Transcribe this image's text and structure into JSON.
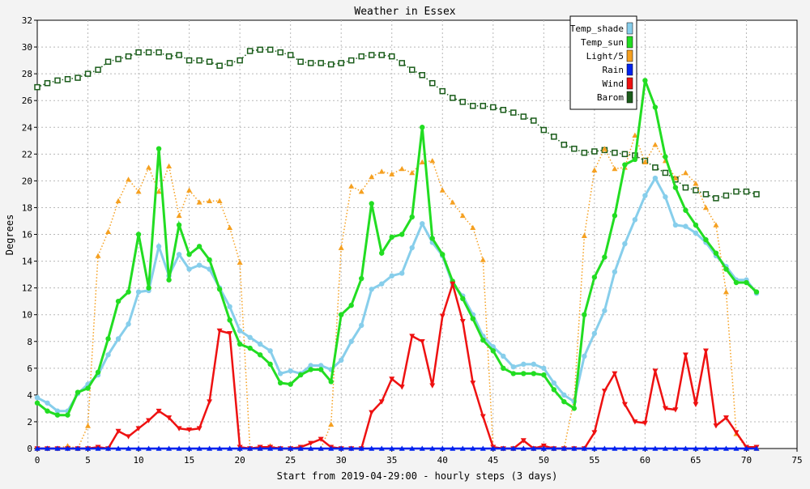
{
  "chart_data": {
    "type": "line",
    "title": "Weather in Essex",
    "xlabel": "Start from 2019-04-29:00 - hourly steps (3 days)",
    "ylabel": "Degrees",
    "xlim": [
      0,
      75
    ],
    "ylim": [
      0,
      32
    ],
    "xticks": [
      0,
      5,
      10,
      15,
      20,
      25,
      30,
      35,
      40,
      45,
      50,
      55,
      60,
      65,
      70,
      75
    ],
    "yticks": [
      0,
      2,
      4,
      6,
      8,
      10,
      12,
      14,
      16,
      18,
      20,
      22,
      24,
      26,
      28,
      30,
      32
    ],
    "grid": true,
    "legend_position": "top-right",
    "x": [
      0,
      1,
      2,
      3,
      4,
      5,
      6,
      7,
      8,
      9,
      10,
      11,
      12,
      13,
      14,
      15,
      16,
      17,
      18,
      19,
      20,
      21,
      22,
      23,
      24,
      25,
      26,
      27,
      28,
      29,
      30,
      31,
      32,
      33,
      34,
      35,
      36,
      37,
      38,
      39,
      40,
      41,
      42,
      43,
      44,
      45,
      46,
      47,
      48,
      49,
      50,
      51,
      52,
      53,
      54,
      55,
      56,
      57,
      58,
      59,
      60,
      61,
      62,
      63,
      64,
      65,
      66,
      67,
      68,
      69,
      70,
      71
    ],
    "series": [
      {
        "name": "Temp_shade",
        "color": "#87ceeb",
        "marker": "dot",
        "style": "solid",
        "values": [
          3.8,
          3.4,
          2.8,
          2.8,
          4.1,
          4.8,
          5.5,
          7.0,
          8.2,
          9.3,
          11.7,
          11.8,
          15.1,
          12.9,
          14.5,
          13.4,
          13.7,
          13.4,
          12.0,
          10.6,
          8.8,
          8.3,
          7.8,
          7.3,
          5.6,
          5.8,
          5.6,
          6.2,
          6.2,
          5.9,
          6.6,
          8.0,
          9.2,
          11.9,
          12.3,
          12.9,
          13.1,
          15.0,
          16.8,
          15.4,
          14.4,
          12.3,
          11.4,
          10.0,
          8.4,
          7.6,
          6.9,
          6.1,
          6.3,
          6.3,
          6.0,
          4.9,
          4.0,
          3.5,
          6.9,
          8.6,
          10.3,
          13.2,
          15.3,
          17.1,
          18.9,
          20.2,
          18.8,
          16.7,
          16.6,
          16.1,
          15.4,
          14.4,
          13.6,
          12.6,
          12.6,
          11.6
        ]
      },
      {
        "name": "Temp_sun",
        "color": "#22dd22",
        "marker": "dot",
        "style": "solid",
        "values": [
          3.4,
          2.8,
          2.5,
          2.5,
          4.2,
          4.5,
          5.7,
          8.2,
          11.0,
          11.7,
          16.0,
          12.0,
          22.4,
          12.6,
          16.7,
          14.5,
          15.1,
          14.1,
          11.9,
          9.6,
          7.8,
          7.5,
          7.0,
          6.3,
          4.9,
          4.8,
          5.5,
          5.9,
          5.9,
          5.0,
          10.0,
          10.7,
          12.7,
          18.3,
          14.6,
          15.8,
          16.0,
          17.3,
          24.0,
          15.7,
          14.5,
          12.5,
          11.2,
          9.7,
          8.1,
          7.3,
          6.0,
          5.6,
          5.6,
          5.6,
          5.5,
          4.4,
          3.5,
          3.0,
          10.0,
          12.8,
          14.3,
          17.4,
          21.2,
          21.6,
          27.5,
          25.5,
          21.8,
          19.5,
          17.8,
          16.7,
          15.6,
          14.6,
          13.4,
          12.4,
          12.4,
          11.7
        ]
      },
      {
        "name": "Light/5",
        "color": "#f5a020",
        "marker": "triangle-up",
        "style": "dotted",
        "values": [
          0,
          0,
          0,
          0.2,
          0,
          1.7,
          14.4,
          16.2,
          18.5,
          20.1,
          19.2,
          21.0,
          19.2,
          21.1,
          17.4,
          19.3,
          18.4,
          18.5,
          18.5,
          16.5,
          13.9,
          0,
          0,
          0.2,
          0,
          0,
          0,
          0,
          0,
          1.8,
          15.0,
          19.6,
          19.2,
          20.3,
          20.7,
          20.5,
          20.9,
          20.6,
          21.4,
          21.5,
          19.3,
          18.4,
          17.4,
          16.5,
          14.1,
          0,
          0,
          0,
          0,
          0,
          0,
          0,
          0,
          3.7,
          15.9,
          20.8,
          22.4,
          20.9,
          21.0,
          23.4,
          21.4,
          22.7,
          21.5,
          20.2,
          20.6,
          19.8,
          18.0,
          16.7,
          11.7,
          1.1,
          0,
          0
        ]
      },
      {
        "name": "Rain",
        "color": "#0022ee",
        "marker": "triangle-up",
        "style": "solid",
        "values": [
          0,
          0,
          0,
          0,
          0,
          0,
          0,
          0,
          0,
          0,
          0,
          0,
          0,
          0,
          0,
          0,
          0,
          0,
          0,
          0,
          0,
          0,
          0,
          0,
          0,
          0,
          0,
          0,
          0,
          0,
          0,
          0,
          0,
          0,
          0,
          0,
          0,
          0,
          0,
          0,
          0,
          0,
          0,
          0,
          0,
          0,
          0,
          0,
          0,
          0,
          0,
          0,
          0,
          0,
          0,
          0,
          0,
          0,
          0,
          0,
          0,
          0,
          0,
          0,
          0,
          0,
          0,
          0,
          0,
          0,
          0,
          0
        ]
      },
      {
        "name": "Wind",
        "color": "#ee1111",
        "marker": "triangle-down",
        "style": "solid",
        "values": [
          0,
          0,
          0,
          0,
          0,
          0,
          0.1,
          0,
          1.3,
          0.9,
          1.5,
          2.1,
          2.8,
          2.3,
          1.5,
          1.4,
          1.5,
          3.5,
          8.8,
          8.6,
          0.1,
          0,
          0.1,
          0.1,
          0,
          0,
          0.1,
          0.4,
          0.7,
          0.1,
          0,
          0,
          0,
          2.7,
          3.5,
          5.2,
          4.6,
          8.4,
          8.0,
          4.7,
          9.9,
          12.3,
          9.5,
          4.9,
          2.4,
          0.1,
          0,
          0,
          0.6,
          0,
          0.2,
          0,
          0,
          0,
          0,
          1.2,
          4.3,
          5.6,
          3.3,
          2.0,
          1.9,
          5.8,
          3.0,
          2.9,
          7.0,
          3.3,
          7.3,
          1.7,
          2.3,
          1.2,
          0.1,
          0.1
        ]
      },
      {
        "name": "Barom",
        "color": "#1a5c1a",
        "marker": "square-open",
        "style": "dotted",
        "values": [
          27.0,
          27.3,
          27.5,
          27.6,
          27.7,
          28.0,
          28.3,
          28.9,
          29.1,
          29.3,
          29.6,
          29.6,
          29.6,
          29.3,
          29.4,
          29.0,
          29.0,
          28.9,
          28.6,
          28.8,
          29.0,
          29.7,
          29.8,
          29.8,
          29.6,
          29.4,
          28.9,
          28.8,
          28.8,
          28.7,
          28.8,
          29.0,
          29.3,
          29.4,
          29.4,
          29.3,
          28.8,
          28.3,
          27.9,
          27.3,
          26.7,
          26.2,
          25.9,
          25.6,
          25.6,
          25.5,
          25.3,
          25.1,
          24.8,
          24.5,
          23.8,
          23.3,
          22.7,
          22.4,
          22.1,
          22.2,
          22.3,
          22.1,
          22.0,
          21.9,
          21.5,
          21.0,
          20.6,
          20.1,
          19.5,
          19.3,
          19.0,
          18.7,
          18.9,
          19.2,
          19.2,
          19.0
        ]
      }
    ]
  }
}
